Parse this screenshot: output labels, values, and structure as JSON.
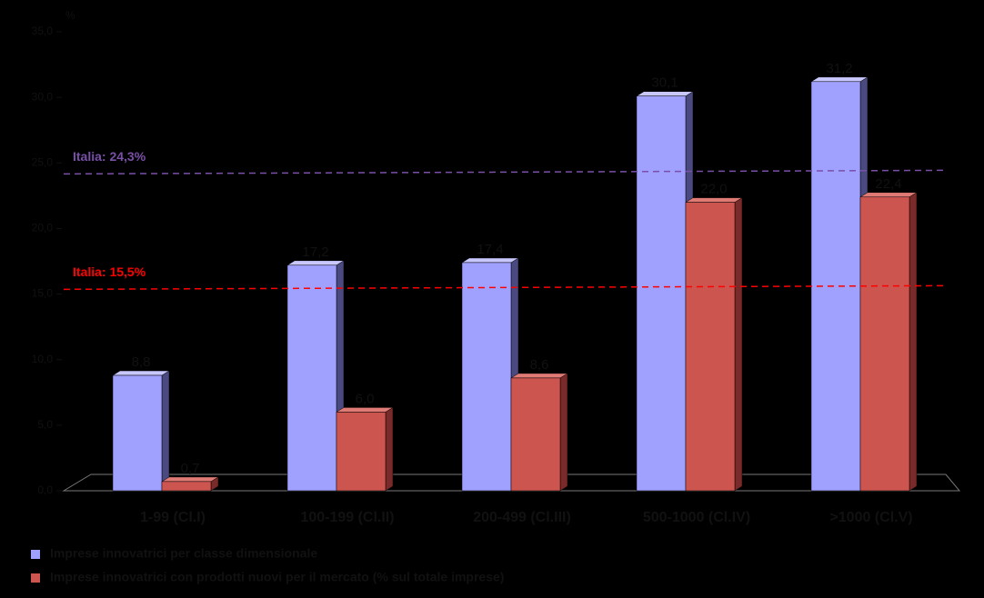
{
  "chart_data": {
    "type": "bar",
    "y_label": "%",
    "categories": [
      "1-99 (Cl.I)",
      "100-199 (Cl.II)",
      "200-499 (Cl.III)",
      "500-1000 (Cl.IV)",
      ">1000 (Cl.V)"
    ],
    "series": [
      {
        "name": "Imprese innovatrici per classe dimensionale",
        "color": "#a0a0ff",
        "values": [
          8.8,
          17.2,
          17.4,
          30.1,
          31.2
        ],
        "value_labels": [
          "8,8",
          "17,2",
          "17,4",
          "30,1",
          "31,2"
        ]
      },
      {
        "name": "Imprese innovatrici con prodotti nuovi per il mercato (% sul totale imprese)",
        "color": "#cc5550",
        "values": [
          0.7,
          6.0,
          8.6,
          22.0,
          22.4
        ],
        "value_labels": [
          "0,7",
          "6,0",
          "8,6",
          "22,0",
          "22,4"
        ]
      }
    ],
    "ylim": [
      0,
      35
    ],
    "yticks": [
      {
        "value": 0,
        "label": "0,0"
      },
      {
        "value": 5,
        "label": "5,0"
      },
      {
        "value": 10,
        "label": "10,0"
      },
      {
        "value": 15,
        "label": "15,0"
      },
      {
        "value": 20,
        "label": "20,0"
      },
      {
        "value": 25,
        "label": "25,0"
      },
      {
        "value": 30,
        "label": "30,0"
      },
      {
        "value": 35,
        "label": "35,0"
      }
    ],
    "reference_lines": [
      {
        "value": 24.3,
        "label": "Italia: 24,3%",
        "color": "#7a4fa8"
      },
      {
        "value": 15.5,
        "label": "Italia: 15,5%",
        "color": "#ff0000"
      }
    ]
  }
}
